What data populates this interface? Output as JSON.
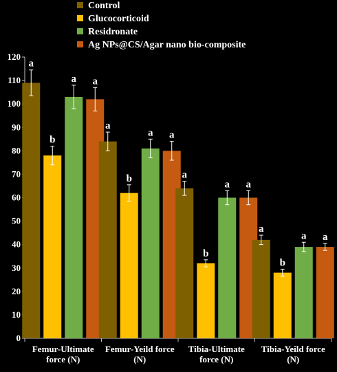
{
  "chart_data": {
    "type": "bar",
    "title": "",
    "xlabel": "",
    "ylabel": "",
    "ylim": [
      0,
      120
    ],
    "ytick_step": 10,
    "grid": false,
    "legend_position": "top",
    "categories": [
      [
        "Femur-Ultimate",
        "force (N)"
      ],
      [
        "Femur-Yeild force",
        "(N)"
      ],
      [
        "Tibia-Ultimate",
        "force (N)"
      ],
      [
        "Tibia-Yeild force",
        "(N)"
      ]
    ],
    "series": [
      {
        "name": "Control",
        "color": "#7f6000",
        "values": [
          109,
          84,
          64,
          42
        ],
        "errors": [
          5.5,
          4,
          3,
          2
        ],
        "labels": [
          "a",
          "a",
          "a",
          "a"
        ]
      },
      {
        "name": "Glucocorticoid",
        "color": "#ffc000",
        "values": [
          78,
          62,
          32,
          28
        ],
        "errors": [
          4,
          3.5,
          1.5,
          1.5
        ],
        "labels": [
          "b",
          "b",
          "b",
          "b"
        ]
      },
      {
        "name": "Residronate",
        "color": "#70ad47",
        "values": [
          103,
          81,
          60,
          39
        ],
        "errors": [
          5,
          4,
          3,
          2
        ],
        "labels": [
          "a",
          "a",
          "a",
          "a"
        ]
      },
      {
        "name": "Ag NPs@CS/Agar nano bio-composite",
        "color": "#c55a11",
        "values": [
          102,
          80,
          60,
          39
        ],
        "errors": [
          5,
          4,
          3,
          1.5
        ],
        "labels": [
          "a",
          "a",
          "a",
          "a"
        ]
      }
    ]
  }
}
